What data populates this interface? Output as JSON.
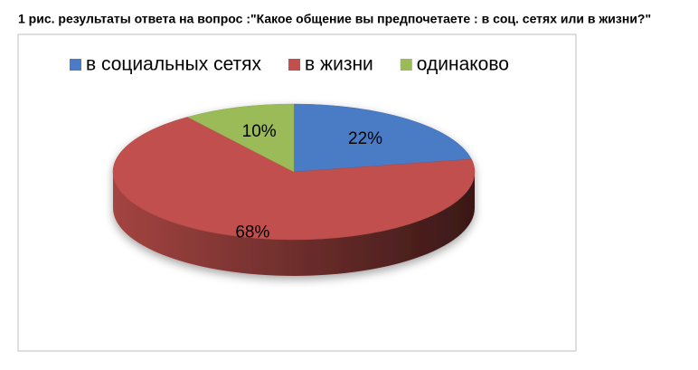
{
  "chart_data": {
    "type": "pie",
    "title": "1 рис. результаты ответа на вопрос :\"Какое общение вы предпочетаете : в соц. сетях или в жизни?\"",
    "categories": [
      "в социальных сетях",
      "в жизни",
      "одинаково"
    ],
    "values": [
      22,
      68,
      10
    ],
    "value_labels": [
      "22%",
      "68%",
      "10%"
    ],
    "colors": [
      "#4a7bc4",
      "#c0504d",
      "#9bbb59"
    ],
    "legend": "top"
  }
}
